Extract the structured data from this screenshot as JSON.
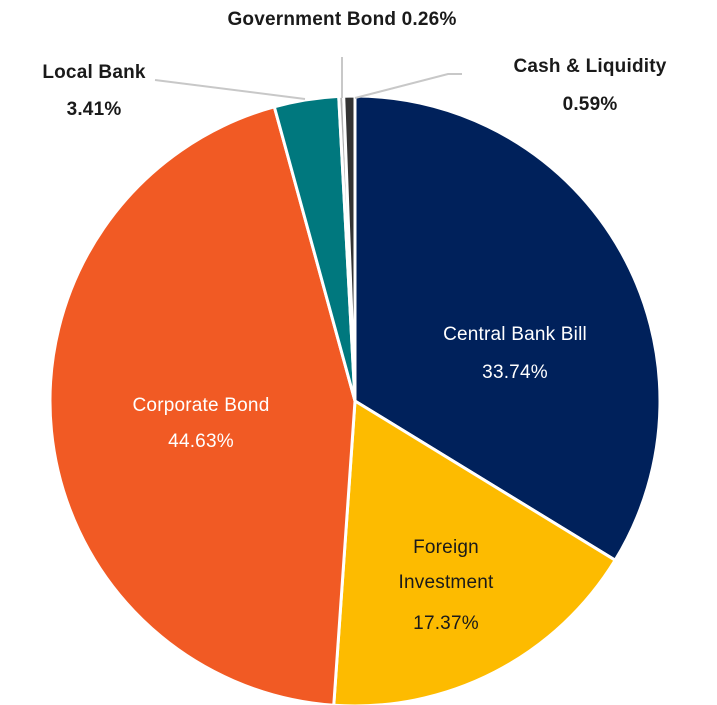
{
  "chart_data": {
    "type": "pie",
    "title": "",
    "slices": [
      {
        "label": "Central Bank Bill",
        "value_text": "33.74%",
        "value": 33.74,
        "color": "#00215b"
      },
      {
        "label": "Foreign Investment",
        "value_text": "17.37%",
        "value": 17.37,
        "color": "#fdbb00"
      },
      {
        "label": "Corporate Bond",
        "value_text": "44.63%",
        "value": 44.63,
        "color": "#f15a24"
      },
      {
        "label": "Local Bank",
        "value_text": "3.41%",
        "value": 3.41,
        "color": "#00787e"
      },
      {
        "label": "Government Bond",
        "value_text": "0.26%",
        "value": 0.26,
        "color": "#b3b3b3"
      },
      {
        "label": "Cash & Liquidity",
        "value_text": "0.59%",
        "value": 0.59,
        "color": "#333333"
      }
    ],
    "labels": {
      "central_bank_bill": {
        "name": "Central Bank Bill",
        "value": "33.74%"
      },
      "foreign_investment": {
        "line1": "Foreign",
        "line2": "Investment",
        "value": "17.37%"
      },
      "corporate_bond": {
        "name": "Corporate Bond",
        "value": "44.63%"
      },
      "local_bank": {
        "name": "Local Bank",
        "value": "3.41%"
      },
      "government_bond": {
        "text": "Government Bond 0.26%"
      },
      "cash_liquidity": {
        "name": "Cash & Liquidity",
        "value": "0.59%"
      }
    }
  }
}
